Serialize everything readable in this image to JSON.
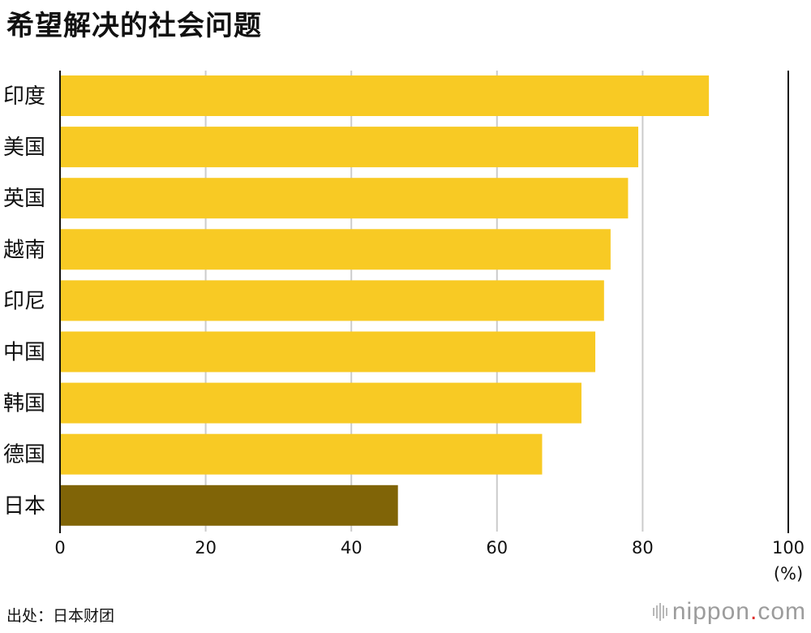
{
  "title": "希望解决的社会问题",
  "source": "出处：日本财团",
  "logo": {
    "name": "nippon",
    "dot": ".",
    "tld": "com",
    "dot_color": "#e0302e"
  },
  "colors": {
    "bar": "#f8ca24",
    "highlight": "#806407",
    "grid": "#cccccc",
    "axis": "#111111"
  },
  "chart_data": {
    "type": "bar",
    "orientation": "horizontal",
    "categories": [
      "印度",
      "美国",
      "英国",
      "越南",
      "印尼",
      "中国",
      "韩国",
      "德国",
      "日本"
    ],
    "values": [
      89.1,
      79.4,
      78.0,
      75.6,
      74.7,
      73.5,
      71.6,
      66.2,
      46.4
    ],
    "highlight_category": "日本",
    "xlim": [
      0,
      100
    ],
    "xticks": [
      "0",
      "20",
      "40",
      "60",
      "80",
      "100"
    ],
    "unit_label": "(%)",
    "grid": true
  }
}
